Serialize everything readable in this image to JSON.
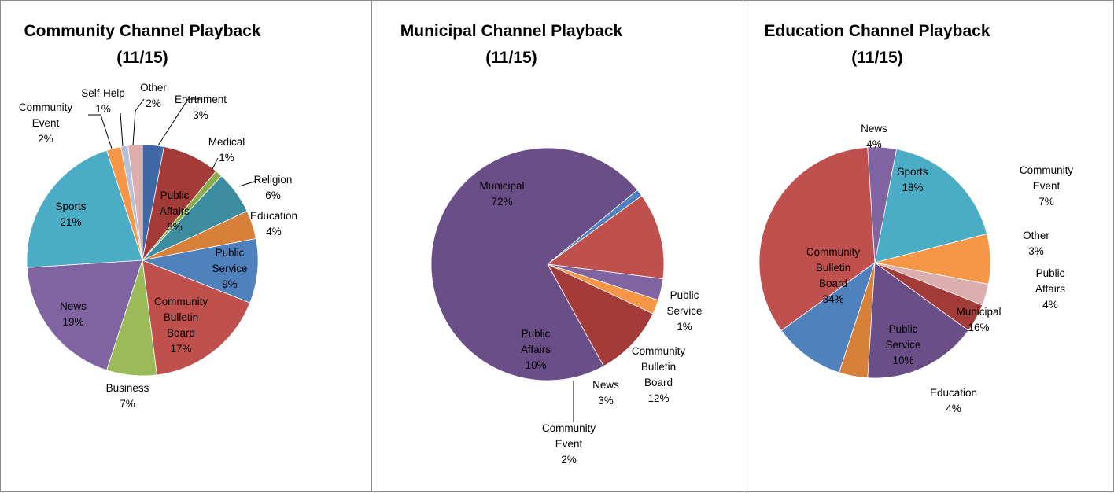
{
  "chart_data": [
    {
      "type": "pie",
      "title": [
        "Community Channel Playback",
        "(11/15)"
      ],
      "slices": [
        {
          "label": [
            "Entrtnment"
          ],
          "value": 3,
          "pct": "3%",
          "color": "#3f68a7"
        },
        {
          "label": [
            "Public",
            "Affairs"
          ],
          "value": 8,
          "pct": "8%",
          "color": "#a33b39"
        },
        {
          "label": [
            "Medical"
          ],
          "value": 1,
          "pct": "1%",
          "color": "#8aae4c"
        },
        {
          "label": [
            "Religion"
          ],
          "value": 6,
          "pct": "6%",
          "color": "#3d8da1"
        },
        {
          "label": [
            "Education"
          ],
          "value": 4,
          "pct": "4%",
          "color": "#d6803a"
        },
        {
          "label": [
            "Public",
            "Service"
          ],
          "value": 9,
          "pct": "9%",
          "color": "#4f81bd"
        },
        {
          "label": [
            "Community",
            "Bulletin",
            "Board"
          ],
          "value": 17,
          "pct": "17%",
          "color": "#c0504d"
        },
        {
          "label": [
            "Business"
          ],
          "value": 7,
          "pct": "7%",
          "color": "#9bbb59"
        },
        {
          "label": [
            "News"
          ],
          "value": 19,
          "pct": "19%",
          "color": "#8064a2"
        },
        {
          "label": [
            "Sports"
          ],
          "value": 21,
          "pct": "21%",
          "color": "#4bacc6"
        },
        {
          "label": [
            "Community",
            "Event"
          ],
          "value": 2,
          "pct": "2%",
          "color": "#f79646"
        },
        {
          "label": [
            "Self-Help"
          ],
          "value": 1,
          "pct": "1%",
          "color": "#b4c0dc"
        },
        {
          "label": [
            "Other"
          ],
          "value": 2,
          "pct": "2%",
          "color": "#dcaeae"
        }
      ]
    },
    {
      "type": "pie",
      "title": [
        "Municipal Channel Playback",
        "(11/15)"
      ],
      "slices": [
        {
          "label": [
            "Public",
            "Service"
          ],
          "value": 1,
          "pct": "1%",
          "color": "#4f81bd"
        },
        {
          "label": [
            "Community",
            "Bulletin",
            "Board"
          ],
          "value": 12,
          "pct": "12%",
          "color": "#c0504d"
        },
        {
          "label": [
            "News"
          ],
          "value": 3,
          "pct": "3%",
          "color": "#8064a2"
        },
        {
          "label": [
            "Community",
            "Event"
          ],
          "value": 2,
          "pct": "2%",
          "color": "#f79646"
        },
        {
          "label": [
            "Public",
            "Affairs"
          ],
          "value": 10,
          "pct": "10%",
          "color": "#a33b39"
        },
        {
          "label": [
            "Municipal"
          ],
          "value": 72,
          "pct": "72%",
          "color": "#6a4e87"
        }
      ]
    },
    {
      "type": "pie",
      "title": [
        "Education Channel Playback",
        "(11/15)"
      ],
      "slices": [
        {
          "label": [
            "Sports"
          ],
          "value": 18,
          "pct": "18%",
          "color": "#4bacc6"
        },
        {
          "label": [
            "Community",
            "Event"
          ],
          "value": 7,
          "pct": "7%",
          "color": "#f79646"
        },
        {
          "label": [
            "Other"
          ],
          "value": 3,
          "pct": "3%",
          "color": "#dcaeae"
        },
        {
          "label": [
            "Public",
            "Affairs"
          ],
          "value": 4,
          "pct": "4%",
          "color": "#a33b39"
        },
        {
          "label": [
            "Municipal"
          ],
          "value": 16,
          "pct": "16%",
          "color": "#6a4e87"
        },
        {
          "label": [
            "Education"
          ],
          "value": 4,
          "pct": "4%",
          "color": "#d6803a"
        },
        {
          "label": [
            "Public",
            "Service"
          ],
          "value": 10,
          "pct": "10%",
          "color": "#4f81bd"
        },
        {
          "label": [
            "Community",
            "Bulletin",
            "Board"
          ],
          "value": 34,
          "pct": "34%",
          "color": "#c0504d"
        },
        {
          "label": [
            "News"
          ],
          "value": 4,
          "pct": "4%",
          "color": "#8064a2"
        }
      ]
    }
  ]
}
